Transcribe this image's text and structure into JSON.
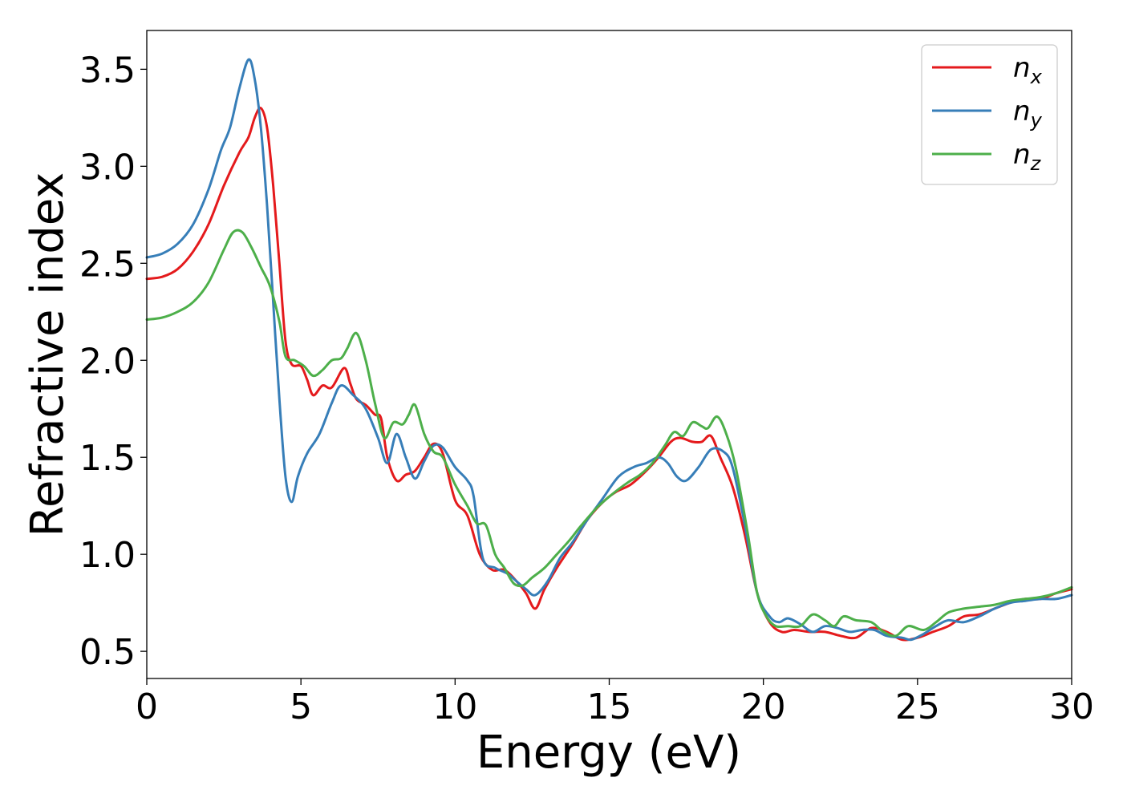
{
  "chart_data": {
    "type": "line",
    "xlabel": "Energy (eV)",
    "ylabel": "Refractive index",
    "xlim": [
      0,
      30
    ],
    "ylim": [
      0.36,
      3.7
    ],
    "xticks": [
      0,
      5,
      10,
      15,
      20,
      25,
      30
    ],
    "yticks": [
      0.5,
      1.0,
      1.5,
      2.0,
      2.5,
      3.0,
      3.5
    ],
    "xtick_labels": [
      "0",
      "5",
      "10",
      "15",
      "20",
      "25",
      "30"
    ],
    "ytick_labels": [
      "0.5",
      "1.0",
      "1.5",
      "2.0",
      "2.5",
      "3.0",
      "3.5"
    ],
    "grid": false,
    "legend_position": "top-right",
    "series": [
      {
        "name": "n_x",
        "label_base": "n",
        "label_sub": "x",
        "color": "#e41a1c",
        "points": [
          [
            0,
            2.42
          ],
          [
            0.5,
            2.43
          ],
          [
            1.0,
            2.47
          ],
          [
            1.5,
            2.56
          ],
          [
            2.0,
            2.7
          ],
          [
            2.5,
            2.9
          ],
          [
            3.0,
            3.07
          ],
          [
            3.3,
            3.15
          ],
          [
            3.5,
            3.25
          ],
          [
            3.7,
            3.3
          ],
          [
            3.9,
            3.2
          ],
          [
            4.1,
            2.9
          ],
          [
            4.3,
            2.5
          ],
          [
            4.5,
            2.1
          ],
          [
            4.7,
            1.98
          ],
          [
            5.0,
            1.97
          ],
          [
            5.2,
            1.9
          ],
          [
            5.4,
            1.82
          ],
          [
            5.7,
            1.87
          ],
          [
            6.0,
            1.86
          ],
          [
            6.4,
            1.96
          ],
          [
            6.6,
            1.88
          ],
          [
            6.8,
            1.8
          ],
          [
            7.1,
            1.77
          ],
          [
            7.4,
            1.72
          ],
          [
            7.6,
            1.7
          ],
          [
            7.8,
            1.5
          ],
          [
            8.1,
            1.38
          ],
          [
            8.4,
            1.41
          ],
          [
            8.7,
            1.43
          ],
          [
            9.0,
            1.5
          ],
          [
            9.3,
            1.57
          ],
          [
            9.6,
            1.52
          ],
          [
            10.0,
            1.28
          ],
          [
            10.4,
            1.2
          ],
          [
            10.8,
            1.0
          ],
          [
            11.2,
            0.92
          ],
          [
            11.6,
            0.92
          ],
          [
            12.0,
            0.86
          ],
          [
            12.3,
            0.8
          ],
          [
            12.6,
            0.72
          ],
          [
            12.9,
            0.82
          ],
          [
            13.3,
            0.93
          ],
          [
            13.8,
            1.05
          ],
          [
            14.3,
            1.18
          ],
          [
            14.8,
            1.27
          ],
          [
            15.2,
            1.32
          ],
          [
            15.7,
            1.36
          ],
          [
            16.2,
            1.43
          ],
          [
            16.6,
            1.5
          ],
          [
            17.0,
            1.58
          ],
          [
            17.3,
            1.6
          ],
          [
            17.7,
            1.58
          ],
          [
            18.0,
            1.58
          ],
          [
            18.3,
            1.61
          ],
          [
            18.6,
            1.5
          ],
          [
            19.0,
            1.35
          ],
          [
            19.4,
            1.1
          ],
          [
            19.8,
            0.8
          ],
          [
            20.2,
            0.65
          ],
          [
            20.6,
            0.6
          ],
          [
            21.0,
            0.61
          ],
          [
            21.5,
            0.6
          ],
          [
            22.0,
            0.6
          ],
          [
            22.5,
            0.58
          ],
          [
            23.0,
            0.57
          ],
          [
            23.5,
            0.62
          ],
          [
            24.0,
            0.6
          ],
          [
            24.5,
            0.56
          ],
          [
            25.0,
            0.57
          ],
          [
            25.5,
            0.6
          ],
          [
            26.0,
            0.63
          ],
          [
            26.5,
            0.68
          ],
          [
            27.0,
            0.69
          ],
          [
            27.5,
            0.72
          ],
          [
            28.0,
            0.75
          ],
          [
            28.5,
            0.77
          ],
          [
            29.0,
            0.77
          ],
          [
            29.5,
            0.8
          ],
          [
            30.0,
            0.82
          ]
        ]
      },
      {
        "name": "n_y",
        "label_base": "n",
        "label_sub": "y",
        "color": "#377eb8",
        "points": [
          [
            0,
            2.53
          ],
          [
            0.5,
            2.55
          ],
          [
            1.0,
            2.6
          ],
          [
            1.5,
            2.7
          ],
          [
            2.0,
            2.88
          ],
          [
            2.4,
            3.08
          ],
          [
            2.7,
            3.2
          ],
          [
            3.0,
            3.4
          ],
          [
            3.3,
            3.55
          ],
          [
            3.5,
            3.45
          ],
          [
            3.7,
            3.2
          ],
          [
            3.9,
            2.8
          ],
          [
            4.1,
            2.3
          ],
          [
            4.3,
            1.8
          ],
          [
            4.5,
            1.4
          ],
          [
            4.7,
            1.27
          ],
          [
            4.9,
            1.4
          ],
          [
            5.2,
            1.52
          ],
          [
            5.6,
            1.62
          ],
          [
            6.0,
            1.78
          ],
          [
            6.3,
            1.87
          ],
          [
            6.7,
            1.82
          ],
          [
            7.1,
            1.75
          ],
          [
            7.5,
            1.6
          ],
          [
            7.8,
            1.47
          ],
          [
            8.1,
            1.62
          ],
          [
            8.4,
            1.5
          ],
          [
            8.7,
            1.39
          ],
          [
            9.0,
            1.48
          ],
          [
            9.3,
            1.56
          ],
          [
            9.6,
            1.55
          ],
          [
            10.0,
            1.45
          ],
          [
            10.4,
            1.38
          ],
          [
            10.6,
            1.3
          ],
          [
            10.9,
            0.98
          ],
          [
            11.3,
            0.93
          ],
          [
            11.7,
            0.9
          ],
          [
            12.0,
            0.86
          ],
          [
            12.3,
            0.82
          ],
          [
            12.6,
            0.79
          ],
          [
            13.0,
            0.86
          ],
          [
            13.4,
            0.98
          ],
          [
            13.8,
            1.06
          ],
          [
            14.3,
            1.18
          ],
          [
            14.8,
            1.29
          ],
          [
            15.3,
            1.4
          ],
          [
            15.8,
            1.45
          ],
          [
            16.2,
            1.47
          ],
          [
            16.6,
            1.5
          ],
          [
            16.9,
            1.47
          ],
          [
            17.2,
            1.4
          ],
          [
            17.5,
            1.38
          ],
          [
            17.9,
            1.45
          ],
          [
            18.3,
            1.54
          ],
          [
            18.7,
            1.53
          ],
          [
            19.0,
            1.45
          ],
          [
            19.4,
            1.15
          ],
          [
            19.8,
            0.8
          ],
          [
            20.2,
            0.68
          ],
          [
            20.5,
            0.65
          ],
          [
            20.8,
            0.67
          ],
          [
            21.2,
            0.64
          ],
          [
            21.6,
            0.6
          ],
          [
            22.0,
            0.63
          ],
          [
            22.4,
            0.62
          ],
          [
            22.8,
            0.6
          ],
          [
            23.2,
            0.61
          ],
          [
            23.6,
            0.61
          ],
          [
            24.0,
            0.58
          ],
          [
            24.5,
            0.57
          ],
          [
            24.8,
            0.56
          ],
          [
            25.2,
            0.59
          ],
          [
            25.6,
            0.63
          ],
          [
            26.0,
            0.66
          ],
          [
            26.5,
            0.65
          ],
          [
            27.0,
            0.68
          ],
          [
            27.5,
            0.72
          ],
          [
            28.0,
            0.75
          ],
          [
            28.5,
            0.76
          ],
          [
            29.0,
            0.77
          ],
          [
            29.5,
            0.77
          ],
          [
            30.0,
            0.79
          ]
        ]
      },
      {
        "name": "n_z",
        "label_base": "n",
        "label_sub": "z",
        "color": "#4daf4a",
        "points": [
          [
            0,
            2.21
          ],
          [
            0.5,
            2.22
          ],
          [
            1.0,
            2.25
          ],
          [
            1.5,
            2.3
          ],
          [
            2.0,
            2.4
          ],
          [
            2.5,
            2.57
          ],
          [
            2.8,
            2.66
          ],
          [
            3.1,
            2.66
          ],
          [
            3.4,
            2.58
          ],
          [
            3.7,
            2.48
          ],
          [
            4.0,
            2.38
          ],
          [
            4.3,
            2.2
          ],
          [
            4.5,
            2.02
          ],
          [
            4.8,
            2.0
          ],
          [
            5.1,
            1.97
          ],
          [
            5.4,
            1.92
          ],
          [
            5.7,
            1.95
          ],
          [
            6.0,
            2.0
          ],
          [
            6.3,
            2.01
          ],
          [
            6.5,
            2.06
          ],
          [
            6.8,
            2.14
          ],
          [
            7.1,
            2.0
          ],
          [
            7.4,
            1.78
          ],
          [
            7.7,
            1.6
          ],
          [
            8.0,
            1.68
          ],
          [
            8.3,
            1.67
          ],
          [
            8.5,
            1.72
          ],
          [
            8.7,
            1.77
          ],
          [
            9.0,
            1.62
          ],
          [
            9.3,
            1.53
          ],
          [
            9.6,
            1.5
          ],
          [
            10.0,
            1.36
          ],
          [
            10.4,
            1.25
          ],
          [
            10.7,
            1.16
          ],
          [
            11.0,
            1.15
          ],
          [
            11.3,
            1.0
          ],
          [
            11.6,
            0.93
          ],
          [
            11.9,
            0.85
          ],
          [
            12.2,
            0.84
          ],
          [
            12.5,
            0.88
          ],
          [
            12.9,
            0.93
          ],
          [
            13.3,
            1.0
          ],
          [
            13.7,
            1.07
          ],
          [
            14.1,
            1.15
          ],
          [
            14.6,
            1.24
          ],
          [
            15.1,
            1.31
          ],
          [
            15.6,
            1.37
          ],
          [
            16.0,
            1.41
          ],
          [
            16.4,
            1.47
          ],
          [
            16.8,
            1.56
          ],
          [
            17.1,
            1.63
          ],
          [
            17.4,
            1.61
          ],
          [
            17.7,
            1.68
          ],
          [
            18.0,
            1.66
          ],
          [
            18.2,
            1.65
          ],
          [
            18.5,
            1.71
          ],
          [
            18.8,
            1.62
          ],
          [
            19.1,
            1.45
          ],
          [
            19.5,
            1.1
          ],
          [
            19.8,
            0.8
          ],
          [
            20.1,
            0.68
          ],
          [
            20.4,
            0.63
          ],
          [
            20.8,
            0.63
          ],
          [
            21.2,
            0.63
          ],
          [
            21.6,
            0.69
          ],
          [
            22.0,
            0.66
          ],
          [
            22.3,
            0.63
          ],
          [
            22.6,
            0.68
          ],
          [
            23.0,
            0.66
          ],
          [
            23.5,
            0.65
          ],
          [
            23.9,
            0.6
          ],
          [
            24.3,
            0.58
          ],
          [
            24.7,
            0.63
          ],
          [
            25.2,
            0.61
          ],
          [
            25.6,
            0.65
          ],
          [
            26.0,
            0.7
          ],
          [
            26.5,
            0.72
          ],
          [
            27.0,
            0.73
          ],
          [
            27.5,
            0.74
          ],
          [
            28.0,
            0.76
          ],
          [
            28.5,
            0.77
          ],
          [
            29.0,
            0.78
          ],
          [
            29.5,
            0.8
          ],
          [
            30.0,
            0.83
          ]
        ]
      }
    ]
  }
}
